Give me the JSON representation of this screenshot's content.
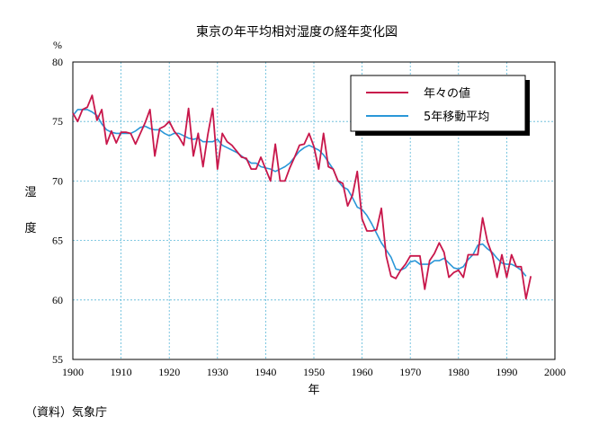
{
  "chart_data": {
    "type": "line",
    "title": "東京の年平均相対湿度の経年変化図",
    "ylabel_chars": [
      "湿",
      "度"
    ],
    "y_unit": "%",
    "xlabel": "年",
    "xlim": [
      1900,
      2000
    ],
    "ylim": [
      55,
      80
    ],
    "x_ticks": [
      1900,
      1910,
      1920,
      1930,
      1940,
      1950,
      1960,
      1970,
      1980,
      1990,
      2000
    ],
    "y_ticks": [
      55,
      60,
      65,
      70,
      75,
      80
    ],
    "grid": true,
    "legend_position": "top-right",
    "series": [
      {
        "name": "年々の値",
        "color": "#c8174b",
        "x": [
          1900,
          1901,
          1902,
          1903,
          1904,
          1905,
          1906,
          1907,
          1908,
          1909,
          1910,
          1911,
          1912,
          1913,
          1914,
          1915,
          1916,
          1917,
          1918,
          1919,
          1920,
          1921,
          1922,
          1923,
          1924,
          1925,
          1926,
          1927,
          1928,
          1929,
          1930,
          1931,
          1932,
          1933,
          1934,
          1935,
          1936,
          1937,
          1938,
          1939,
          1940,
          1941,
          1942,
          1943,
          1944,
          1945,
          1946,
          1947,
          1948,
          1949,
          1950,
          1951,
          1952,
          1953,
          1954,
          1955,
          1956,
          1957,
          1958,
          1959,
          1960,
          1961,
          1962,
          1963,
          1964,
          1965,
          1966,
          1967,
          1968,
          1969,
          1970,
          1971,
          1972,
          1973,
          1974,
          1975,
          1976,
          1977,
          1978,
          1979,
          1980,
          1981,
          1982,
          1983,
          1984,
          1985,
          1986,
          1987,
          1988,
          1989,
          1990,
          1991,
          1992,
          1993,
          1994,
          1995
        ],
        "values": [
          75.7,
          75.0,
          76.0,
          76.2,
          77.2,
          75.1,
          76.0,
          73.1,
          74.2,
          73.2,
          74.1,
          74.1,
          74.0,
          73.1,
          74.0,
          74.9,
          76.0,
          72.1,
          74.4,
          74.6,
          75.0,
          74.2,
          73.7,
          73.0,
          76.1,
          72.1,
          74.0,
          71.2,
          73.9,
          76.1,
          71.0,
          74.0,
          73.3,
          73.0,
          72.5,
          72.0,
          71.9,
          71.0,
          71.0,
          72.0,
          71.0,
          70.0,
          73.1,
          70.0,
          70.0,
          71.1,
          72.0,
          73.0,
          73.1,
          74.0,
          72.9,
          71.0,
          74.0,
          71.2,
          71.0,
          70.0,
          69.8,
          67.9,
          68.8,
          70.8,
          66.8,
          65.8,
          65.8,
          65.9,
          67.7,
          63.7,
          62.0,
          61.8,
          62.5,
          63.0,
          63.7,
          63.7,
          63.7,
          60.9,
          63.3,
          63.9,
          64.8,
          64.0,
          61.9,
          62.3,
          62.5,
          61.9,
          63.8,
          63.8,
          63.8,
          66.9,
          64.9,
          63.8,
          61.9,
          63.8,
          61.9,
          63.8,
          62.8,
          62.8,
          60.1,
          62.0
        ]
      },
      {
        "name": "5年移動平均",
        "color": "#2a97d8",
        "x": [
          1900,
          1901,
          1902,
          1903,
          1904,
          1905,
          1906,
          1907,
          1908,
          1909,
          1910,
          1911,
          1912,
          1913,
          1914,
          1915,
          1916,
          1917,
          1918,
          1919,
          1920,
          1921,
          1922,
          1923,
          1924,
          1925,
          1926,
          1927,
          1928,
          1929,
          1930,
          1931,
          1932,
          1933,
          1934,
          1935,
          1936,
          1937,
          1938,
          1939,
          1940,
          1941,
          1942,
          1943,
          1944,
          1945,
          1946,
          1947,
          1948,
          1949,
          1950,
          1951,
          1952,
          1953,
          1954,
          1955,
          1956,
          1957,
          1958,
          1959,
          1960,
          1961,
          1962,
          1963,
          1964,
          1965,
          1966,
          1967,
          1968,
          1969,
          1970,
          1971,
          1972,
          1973,
          1974,
          1975,
          1976,
          1977,
          1978,
          1979,
          1980,
          1981,
          1982,
          1983,
          1984,
          1985,
          1986,
          1987,
          1988,
          1989,
          1990,
          1991,
          1992,
          1993,
          1994
        ],
        "values": [
          75.5,
          76.0,
          76.0,
          76.0,
          75.8,
          75.5,
          74.8,
          74.3,
          74.1,
          74.0,
          74.0,
          74.0,
          74.0,
          74.2,
          74.5,
          74.6,
          74.4,
          74.3,
          74.3,
          74.0,
          73.8,
          74.0,
          74.0,
          73.8,
          73.6,
          73.5,
          73.6,
          73.3,
          73.3,
          73.3,
          73.5,
          73.0,
          72.8,
          72.6,
          72.4,
          72.1,
          71.8,
          71.5,
          71.5,
          71.2,
          71.1,
          71.0,
          70.8,
          71.0,
          71.2,
          71.5,
          72.0,
          72.5,
          72.8,
          73.0,
          72.8,
          72.6,
          72.2,
          71.6,
          71.0,
          70.0,
          69.5,
          69.3,
          68.6,
          67.8,
          67.6,
          67.1,
          66.4,
          65.6,
          64.8,
          64.2,
          63.6,
          62.6,
          62.5,
          62.7,
          63.2,
          63.3,
          63.0,
          63.0,
          63.0,
          63.3,
          63.3,
          63.5,
          63.1,
          62.7,
          62.6,
          62.8,
          63.4,
          63.8,
          64.6,
          64.7,
          64.3,
          64.0,
          63.5,
          63.1,
          63.0,
          63.0,
          62.8,
          62.5,
          62.0
        ]
      }
    ]
  },
  "source_note": "（資料）気象庁"
}
